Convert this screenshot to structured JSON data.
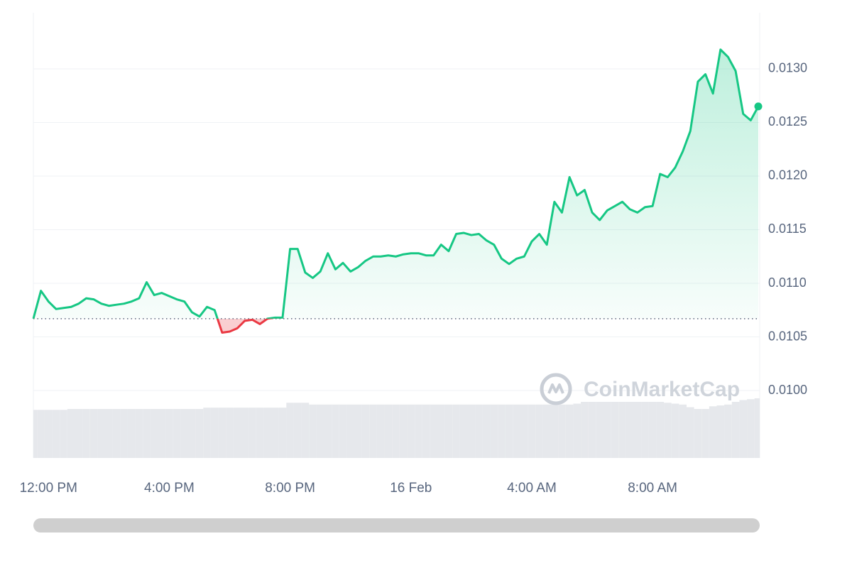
{
  "chart_data": {
    "type": "line",
    "categories": [
      null,
      null,
      "12:00 PM",
      null,
      null,
      null,
      null,
      null,
      null,
      null,
      null,
      null,
      null,
      null,
      null,
      null,
      null,
      null,
      "4:00 PM",
      null,
      null,
      null,
      null,
      null,
      null,
      null,
      null,
      null,
      null,
      null,
      null,
      null,
      null,
      null,
      "8:00 PM",
      null,
      null,
      null,
      null,
      null,
      null,
      null,
      null,
      null,
      null,
      null,
      null,
      null,
      null,
      null,
      "16 Feb",
      null,
      null,
      null,
      null,
      null,
      null,
      null,
      null,
      null,
      null,
      null,
      null,
      null,
      null,
      null,
      "4:00 AM",
      null,
      null,
      null,
      null,
      null,
      null,
      null,
      null,
      null,
      null,
      null,
      null,
      null,
      null,
      null,
      "8:00 AM",
      null,
      null,
      null,
      null,
      null,
      null,
      null,
      null,
      null,
      null,
      null,
      null,
      null,
      null
    ],
    "values": [
      0.01067,
      0.01093,
      0.01083,
      0.01076,
      0.01077,
      0.01078,
      0.01081,
      0.01086,
      0.01085,
      0.01081,
      0.01079,
      0.0108,
      0.01081,
      0.01083,
      0.01086,
      0.01101,
      0.01089,
      0.01091,
      0.01088,
      0.01085,
      0.01083,
      0.01073,
      0.01069,
      0.01078,
      0.01075,
      0.01054,
      0.01055,
      0.01058,
      0.01065,
      0.01066,
      0.01062,
      0.01067,
      0.01068,
      0.01068,
      0.01132,
      0.01132,
      0.0111,
      0.01105,
      0.01111,
      0.01128,
      0.01113,
      0.01119,
      0.01111,
      0.01115,
      0.01121,
      0.01125,
      0.01125,
      0.01126,
      0.01125,
      0.01127,
      0.01128,
      0.01128,
      0.01126,
      0.01126,
      0.01136,
      0.0113,
      0.01146,
      0.01147,
      0.01145,
      0.01146,
      0.0114,
      0.01136,
      0.01123,
      0.01118,
      0.01123,
      0.01125,
      0.01139,
      0.01146,
      0.01136,
      0.01176,
      0.01166,
      0.01199,
      0.01182,
      0.01187,
      0.01166,
      0.01159,
      0.01168,
      0.01172,
      0.01176,
      0.01169,
      0.01166,
      0.01171,
      0.01172,
      0.01202,
      0.01199,
      0.01208,
      0.01223,
      0.01242,
      0.01288,
      0.01295,
      0.01277,
      0.01318,
      0.01311,
      0.01298,
      0.01258,
      0.01252,
      0.01265
    ],
    "color": "#16c784",
    "down_color": "#ea3943",
    "baseline": 0.01067,
    "ylim": [
      0.009371,
      0.013523
    ],
    "yticks": [
      {
        "value": 0.01,
        "label": "0.0100"
      },
      0.0105,
      {
        "value": 0.011,
        "label": "0.0110"
      },
      0.0115,
      {
        "value": 0.012,
        "label": "0.0120"
      },
      0.0125,
      {
        "value": 0.013,
        "label": "0.0130"
      }
    ],
    "grid": true,
    "volume": {
      "color": "#e6e8ec",
      "axis": "y2",
      "values": [
        10.8,
        10.8,
        10.8,
        10.8,
        10.8,
        11.0,
        11.0,
        11.0,
        11.0,
        11.0,
        11.0,
        11.0,
        11.0,
        11.0,
        11.0,
        11.0,
        11.0,
        11.0,
        11.0,
        11.0,
        11.0,
        11.0,
        11.0,
        11.3,
        11.3,
        11.3,
        11.3,
        11.3,
        11.3,
        11.3,
        11.3,
        11.3,
        11.3,
        11.3,
        12.4,
        12.4,
        12.4,
        12.0,
        12.0,
        12.0,
        12.0,
        12.0,
        12.0,
        12.0,
        12.0,
        12.0,
        12.0,
        12.0,
        12.0,
        12.0,
        12.0,
        12.0,
        12.0,
        12.0,
        12.0,
        12.0,
        12.0,
        12.0,
        12.0,
        12.0,
        12.0,
        12.0,
        12.0,
        12.0,
        12.0,
        12.0,
        12.0,
        12.0,
        12.0,
        12.0,
        12.0,
        12.0,
        12.2,
        12.6,
        12.6,
        12.6,
        12.6,
        12.6,
        12.6,
        12.6,
        12.6,
        12.6,
        12.6,
        12.6,
        12.4,
        12.2,
        12.0,
        11.4,
        11.0,
        11.0,
        11.6,
        11.8,
        12.0,
        12.6,
        13.0,
        13.2,
        13.4
      ]
    },
    "y2lim": [
      0,
      100
    ],
    "watermark": "CoinMarketCap"
  }
}
